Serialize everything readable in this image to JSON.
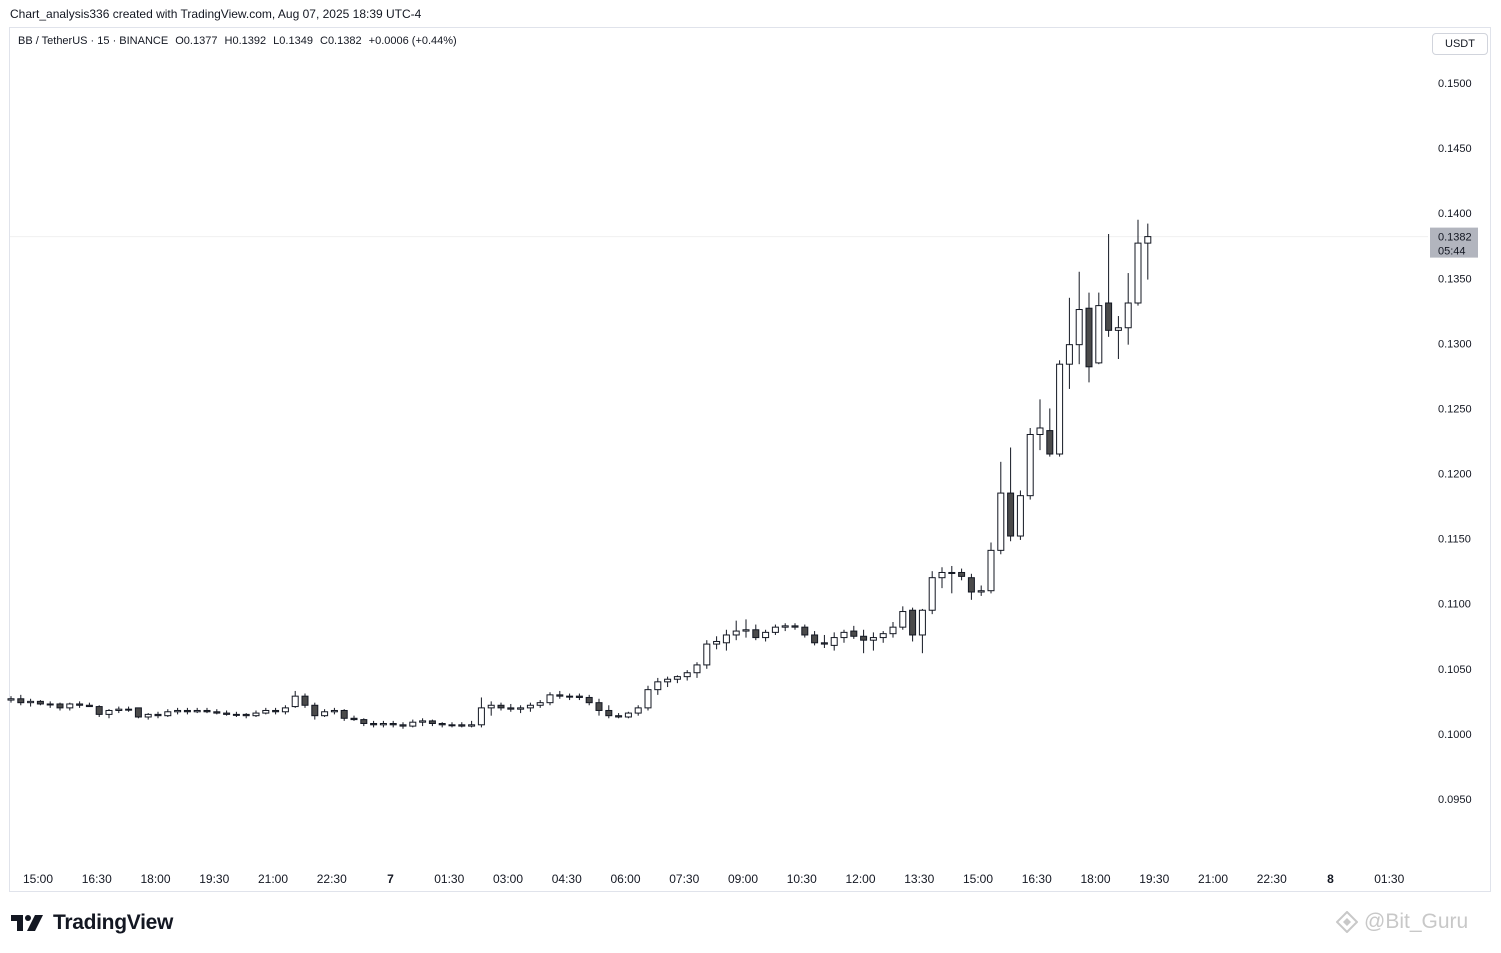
{
  "header": {
    "attribution": "Chart_analysis336 created with TradingView.com, Aug 07, 2025 18:39 UTC-4"
  },
  "symbol": {
    "name": "BB / TetherUS · 15 · BINANCE",
    "open": "O0.1377",
    "high": "H0.1392",
    "low": "L0.1349",
    "close": "C0.1382",
    "change": "+0.0006 (+0.44%)"
  },
  "currency_button": "USDT",
  "price_tag": {
    "price": "0.1382",
    "countdown": "05:44"
  },
  "footer": {
    "brand": "TradingView",
    "watermark": "@Bit_Guru"
  },
  "colors": {
    "up_fill": "#ffffff",
    "down_fill": "#4a4a4a",
    "candle_border": "#131722",
    "price_tag_bg": "#b2b5be"
  },
  "chart_data": {
    "type": "candlestick",
    "title": "BB / TetherUS · 15 · BINANCE",
    "ylabel": "USDT",
    "ylim": [
      0.0915,
      0.1525
    ],
    "y_ticks": [
      "0.1500",
      "0.1450",
      "0.1400",
      "0.1350",
      "0.1300",
      "0.1250",
      "0.1200",
      "0.1150",
      "0.1100",
      "0.1050",
      "0.1000",
      "0.0950"
    ],
    "x_ticks": [
      "15:00",
      "16:30",
      "18:00",
      "19:30",
      "21:00",
      "22:30",
      "7",
      "01:30",
      "03:00",
      "04:30",
      "06:00",
      "07:30",
      "09:00",
      "10:30",
      "12:00",
      "13:30",
      "15:00",
      "16:30",
      "18:00",
      "19:30",
      "21:00",
      "22:30",
      "8",
      "01:30"
    ],
    "last_price": 0.1382,
    "candles": [
      [
        0.1026,
        0.1029,
        0.1024,
        0.1027
      ],
      [
        0.1027,
        0.103,
        0.1022,
        0.1024
      ],
      [
        0.1024,
        0.1027,
        0.1021,
        0.1025
      ],
      [
        0.1025,
        0.1026,
        0.1022,
        0.1023
      ],
      [
        0.1023,
        0.1025,
        0.102,
        0.1023
      ],
      [
        0.1023,
        0.1024,
        0.1018,
        0.102
      ],
      [
        0.102,
        0.1024,
        0.1018,
        0.1023
      ],
      [
        0.1023,
        0.1025,
        0.102,
        0.1022
      ],
      [
        0.1022,
        0.1024,
        0.1021,
        0.1021
      ],
      [
        0.1021,
        0.1022,
        0.1013,
        0.1015
      ],
      [
        0.1015,
        0.1019,
        0.1012,
        0.1018
      ],
      [
        0.1018,
        0.1021,
        0.1016,
        0.1019
      ],
      [
        0.1019,
        0.1021,
        0.1017,
        0.1019
      ],
      [
        0.102,
        0.102,
        0.1012,
        0.1013
      ],
      [
        0.1013,
        0.1016,
        0.1011,
        0.1015
      ],
      [
        0.1015,
        0.1017,
        0.1012,
        0.1014
      ],
      [
        0.1014,
        0.1019,
        0.1013,
        0.1017
      ],
      [
        0.1017,
        0.102,
        0.1015,
        0.1018
      ],
      [
        0.1018,
        0.102,
        0.1015,
        0.1017
      ],
      [
        0.1017,
        0.102,
        0.1016,
        0.1018
      ],
      [
        0.1018,
        0.102,
        0.1016,
        0.1017
      ],
      [
        0.1017,
        0.1019,
        0.1015,
        0.1016
      ],
      [
        0.1016,
        0.1018,
        0.1014,
        0.1015
      ],
      [
        0.1015,
        0.1017,
        0.1013,
        0.1015
      ],
      [
        0.1015,
        0.1016,
        0.1012,
        0.1014
      ],
      [
        0.1014,
        0.1018,
        0.1013,
        0.1016
      ],
      [
        0.1016,
        0.102,
        0.1015,
        0.1018
      ],
      [
        0.1018,
        0.102,
        0.1015,
        0.1017
      ],
      [
        0.1017,
        0.1022,
        0.1015,
        0.102
      ],
      [
        0.1021,
        0.1033,
        0.102,
        0.1029
      ],
      [
        0.1029,
        0.1031,
        0.102,
        0.1022
      ],
      [
        0.1022,
        0.1024,
        0.1011,
        0.1014
      ],
      [
        0.1014,
        0.1019,
        0.1013,
        0.1017
      ],
      [
        0.1017,
        0.102,
        0.1015,
        0.1018
      ],
      [
        0.1018,
        0.1019,
        0.101,
        0.1012
      ],
      [
        0.1012,
        0.1014,
        0.101,
        0.1011
      ],
      [
        0.1011,
        0.1012,
        0.1006,
        0.1008
      ],
      [
        0.1008,
        0.101,
        0.1005,
        0.1007
      ],
      [
        0.1007,
        0.101,
        0.1005,
        0.1008
      ],
      [
        0.1008,
        0.101,
        0.1005,
        0.1007
      ],
      [
        0.1007,
        0.1009,
        0.1004,
        0.1006
      ],
      [
        0.1006,
        0.1011,
        0.1005,
        0.1009
      ],
      [
        0.1009,
        0.1012,
        0.1006,
        0.101
      ],
      [
        0.101,
        0.1011,
        0.1006,
        0.1008
      ],
      [
        0.1008,
        0.1009,
        0.1005,
        0.1007
      ],
      [
        0.1007,
        0.1009,
        0.1005,
        0.1007
      ],
      [
        0.1007,
        0.1009,
        0.1005,
        0.1006
      ],
      [
        0.1006,
        0.101,
        0.1005,
        0.1007
      ],
      [
        0.1007,
        0.1028,
        0.1005,
        0.102
      ],
      [
        0.102,
        0.1025,
        0.1014,
        0.1022
      ],
      [
        0.1022,
        0.1024,
        0.1018,
        0.102
      ],
      [
        0.102,
        0.1023,
        0.1017,
        0.1019
      ],
      [
        0.1019,
        0.1022,
        0.1016,
        0.102
      ],
      [
        0.102,
        0.1024,
        0.1017,
        0.1022
      ],
      [
        0.1022,
        0.1026,
        0.102,
        0.1024
      ],
      [
        0.1024,
        0.1032,
        0.1022,
        0.103
      ],
      [
        0.103,
        0.1033,
        0.1027,
        0.1029
      ],
      [
        0.1029,
        0.1031,
        0.1026,
        0.1029
      ],
      [
        0.1029,
        0.1031,
        0.1026,
        0.1028
      ],
      [
        0.1028,
        0.103,
        0.1022,
        0.1024
      ],
      [
        0.1024,
        0.1027,
        0.1014,
        0.1018
      ],
      [
        0.1018,
        0.1022,
        0.1012,
        0.1014
      ],
      [
        0.1014,
        0.1016,
        0.1012,
        0.1013
      ],
      [
        0.1013,
        0.1017,
        0.1012,
        0.1016
      ],
      [
        0.1016,
        0.1022,
        0.1014,
        0.102
      ],
      [
        0.102,
        0.1037,
        0.1018,
        0.1034
      ],
      [
        0.1034,
        0.1043,
        0.103,
        0.104
      ],
      [
        0.104,
        0.1044,
        0.1036,
        0.1042
      ],
      [
        0.1042,
        0.1045,
        0.1039,
        0.1044
      ],
      [
        0.1044,
        0.1049,
        0.1041,
        0.1047
      ],
      [
        0.1047,
        0.1055,
        0.1043,
        0.1053
      ],
      [
        0.1053,
        0.1072,
        0.105,
        0.1069
      ],
      [
        0.1069,
        0.1075,
        0.1065,
        0.1071
      ],
      [
        0.107,
        0.108,
        0.1064,
        0.1076
      ],
      [
        0.1076,
        0.1087,
        0.1072,
        0.1079
      ],
      [
        0.1079,
        0.1088,
        0.1074,
        0.108
      ],
      [
        0.108,
        0.1084,
        0.1072,
        0.1074
      ],
      [
        0.1074,
        0.108,
        0.1071,
        0.1078
      ],
      [
        0.1078,
        0.1084,
        0.1076,
        0.1082
      ],
      [
        0.1082,
        0.1085,
        0.1079,
        0.1083
      ],
      [
        0.1083,
        0.1085,
        0.108,
        0.1082
      ],
      [
        0.1082,
        0.1084,
        0.1074,
        0.1076
      ],
      [
        0.1076,
        0.1079,
        0.1068,
        0.107
      ],
      [
        0.107,
        0.1076,
        0.1066,
        0.1069
      ],
      [
        0.1068,
        0.1078,
        0.1064,
        0.1074
      ],
      [
        0.1074,
        0.108,
        0.107,
        0.1078
      ],
      [
        0.1079,
        0.1083,
        0.1073,
        0.1075
      ],
      [
        0.1075,
        0.108,
        0.1062,
        0.1072
      ],
      [
        0.1072,
        0.1078,
        0.1064,
        0.1074
      ],
      [
        0.1074,
        0.1079,
        0.107,
        0.1077
      ],
      [
        0.1077,
        0.1086,
        0.1074,
        0.1082
      ],
      [
        0.1082,
        0.1098,
        0.108,
        0.1094
      ],
      [
        0.1095,
        0.1097,
        0.1071,
        0.1076
      ],
      [
        0.1076,
        0.1096,
        0.1062,
        0.1095
      ],
      [
        0.1095,
        0.1125,
        0.1092,
        0.112
      ],
      [
        0.112,
        0.1128,
        0.1112,
        0.1124
      ],
      [
        0.1124,
        0.1129,
        0.1108,
        0.1124
      ],
      [
        0.1124,
        0.1127,
        0.1118,
        0.1121
      ],
      [
        0.112,
        0.1123,
        0.1103,
        0.1109
      ],
      [
        0.1109,
        0.1114,
        0.1106,
        0.111
      ],
      [
        0.111,
        0.1147,
        0.1108,
        0.1141
      ],
      [
        0.1141,
        0.1209,
        0.1138,
        0.1185
      ],
      [
        0.1185,
        0.122,
        0.1148,
        0.1152
      ],
      [
        0.1152,
        0.1187,
        0.1149,
        0.1183
      ],
      [
        0.1183,
        0.1235,
        0.118,
        0.123
      ],
      [
        0.123,
        0.1257,
        0.1218,
        0.1235
      ],
      [
        0.1233,
        0.125,
        0.1213,
        0.1215
      ],
      [
        0.1215,
        0.1287,
        0.1213,
        0.1284
      ],
      [
        0.1284,
        0.1335,
        0.1265,
        0.1299
      ],
      [
        0.1299,
        0.1355,
        0.1284,
        0.1326
      ],
      [
        0.1327,
        0.1339,
        0.127,
        0.1282
      ],
      [
        0.1285,
        0.1339,
        0.1284,
        0.1329
      ],
      [
        0.1331,
        0.1384,
        0.1305,
        0.131
      ],
      [
        0.131,
        0.1321,
        0.1288,
        0.1312
      ],
      [
        0.1312,
        0.1354,
        0.1299,
        0.1331
      ],
      [
        0.1331,
        0.1395,
        0.1329,
        0.1377
      ],
      [
        0.1377,
        0.1392,
        0.1349,
        0.1382
      ]
    ]
  }
}
